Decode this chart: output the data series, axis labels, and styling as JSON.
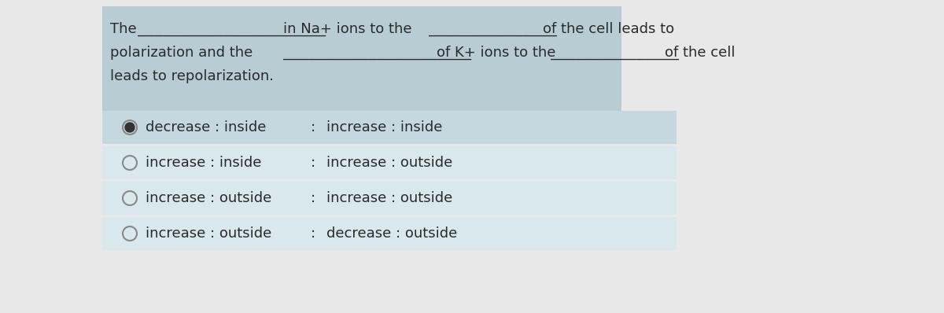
{
  "bg_color": "#e8e8e8",
  "question_bg": "#b8ccd4",
  "selected_row_bg": "#c5d8e0",
  "option_rows_bg": "#d8e8ed",
  "question_line1_parts": [
    "The",
    "______________________",
    "in Na+ ions to the",
    "_______________",
    "of the cell leads to"
  ],
  "question_line2_parts": [
    "polarization and the",
    "______________________",
    "of K+ ions to the",
    "_______________",
    "of the cell"
  ],
  "question_line3": "leads to repolarization.",
  "options": [
    {
      "left": "decrease : inside",
      "right": "increase : inside",
      "selected": true
    },
    {
      "left": "increase : inside",
      "right": "increase : outside",
      "selected": false
    },
    {
      "left": "increase : outside",
      "right": "increase : outside",
      "selected": false
    },
    {
      "left": "increase : outside",
      "right": "decrease : outside",
      "selected": false
    }
  ],
  "font_size_question": 13,
  "font_size_options": 13,
  "text_color": "#2a2a2a",
  "dash_color": "#555555"
}
